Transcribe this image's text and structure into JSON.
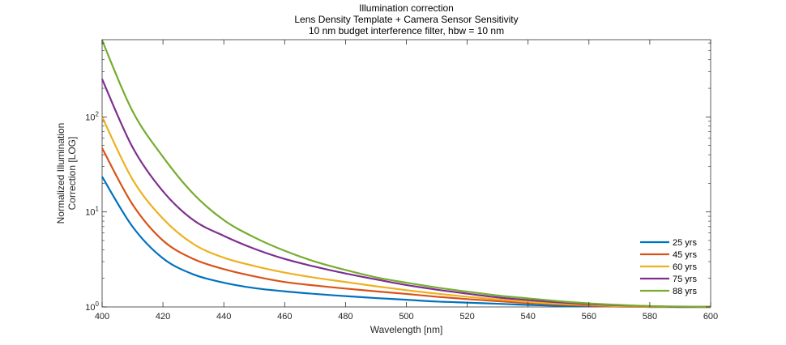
{
  "chart_data": {
    "type": "line",
    "title": [
      "Illumination correction",
      "Lens Density Template + Camera Sensor Sensitivity",
      "10 nm budget interference filter, hbw = 10 nm"
    ],
    "xlabel": "Wavelength [nm]",
    "ylabel": [
      "Normalized Illumination",
      "Correction [LOG]"
    ],
    "xlim": [
      400,
      600
    ],
    "ylim": [
      1,
      650
    ],
    "yscale": "log",
    "grid": false,
    "legend_position": "bottom-right",
    "x_ticks": [
      400,
      420,
      440,
      460,
      480,
      500,
      520,
      540,
      560,
      580,
      600
    ],
    "x_tick_labels": [
      "400",
      "420",
      "440",
      "460",
      "480",
      "500",
      "520",
      "540",
      "560",
      "580",
      "600"
    ],
    "y_ticks": [
      1,
      10,
      100
    ],
    "y_tick_labels": [
      {
        "base": "10",
        "exp": "0"
      },
      {
        "base": "10",
        "exp": "1"
      },
      {
        "base": "10",
        "exp": "2"
      }
    ],
    "x": [
      400,
      410,
      420,
      430,
      440,
      450,
      460,
      470,
      480,
      490,
      500,
      510,
      520,
      530,
      540,
      550,
      560,
      570,
      580,
      590,
      600
    ],
    "series": [
      {
        "name": "25 yrs",
        "color": "#0072BD",
        "values": [
          23.5,
          7.0,
          3.25,
          2.2,
          1.8,
          1.58,
          1.46,
          1.37,
          1.3,
          1.24,
          1.19,
          1.14,
          1.11,
          1.08,
          1.05,
          1.03,
          1.02,
          1.01,
          1.0,
          1.0,
          1.0
        ]
      },
      {
        "name": "45 yrs",
        "color": "#D95319",
        "values": [
          47,
          12.0,
          5.0,
          3.2,
          2.5,
          2.1,
          1.83,
          1.68,
          1.56,
          1.46,
          1.37,
          1.28,
          1.21,
          1.15,
          1.1,
          1.06,
          1.03,
          1.01,
          1.0,
          1.0,
          1.0
        ]
      },
      {
        "name": "60 yrs",
        "color": "#EDB120",
        "values": [
          100,
          22.0,
          8.5,
          4.6,
          3.3,
          2.7,
          2.3,
          2.03,
          1.83,
          1.65,
          1.5,
          1.38,
          1.28,
          1.2,
          1.13,
          1.08,
          1.05,
          1.02,
          1.01,
          1.0,
          1.0
        ]
      },
      {
        "name": "75 yrs",
        "color": "#7E2F8E",
        "values": [
          250,
          48,
          16.5,
          8.2,
          5.6,
          4.1,
          3.2,
          2.65,
          2.25,
          1.95,
          1.7,
          1.52,
          1.38,
          1.26,
          1.18,
          1.12,
          1.07,
          1.04,
          1.02,
          1.0,
          1.0
        ]
      },
      {
        "name": "88 yrs",
        "color": "#77AC30",
        "values": [
          640,
          115,
          38,
          15.5,
          8.2,
          5.4,
          3.9,
          3.0,
          2.45,
          2.05,
          1.8,
          1.6,
          1.45,
          1.32,
          1.23,
          1.15,
          1.09,
          1.05,
          1.02,
          1.01,
          1.0
        ]
      }
    ]
  }
}
